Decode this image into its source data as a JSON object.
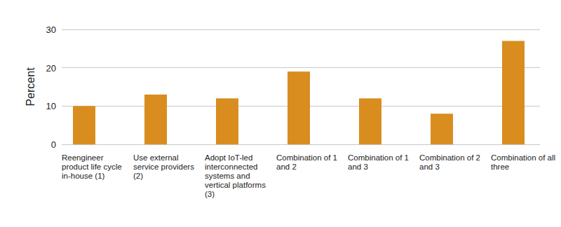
{
  "chart_data": {
    "type": "bar",
    "ylabel": "Percent",
    "categories": [
      "Reengineer product life cycle in-house (1)",
      "Use external service providers (2)",
      "Adopt IoT-led interconnected systems and vertical platforms (3)",
      "Combination of 1 and 2",
      "Combination of 1 and 3",
      "Combination of 2 and 3",
      "Combination of all three"
    ],
    "values": [
      10,
      13,
      12,
      19,
      12,
      8,
      27
    ],
    "color": "#d98d1f",
    "ylim": [
      0,
      30
    ],
    "yticks": [
      0,
      10,
      20,
      30
    ],
    "grid": true
  }
}
